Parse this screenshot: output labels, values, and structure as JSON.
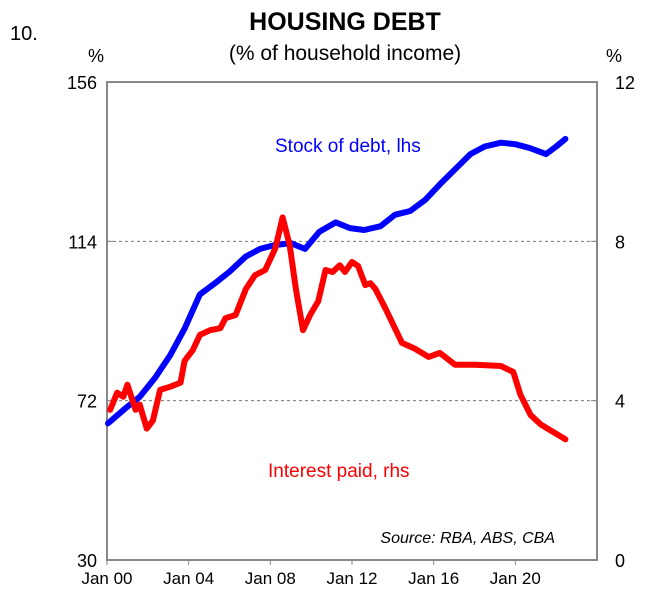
{
  "chart_data": {
    "type": "line",
    "chart_number": "10.",
    "title": "HOUSING DEBT",
    "subtitle": "(% of household income)",
    "left_unit": "%",
    "right_unit": "%",
    "left_axis": {
      "range": [
        30,
        156
      ],
      "ticks": [
        30,
        72,
        114,
        156
      ]
    },
    "right_axis": {
      "range": [
        0,
        12
      ],
      "ticks": [
        0,
        4,
        8,
        12
      ]
    },
    "x_axis": {
      "range": [
        2000,
        2024
      ],
      "ticks": [
        2000,
        2004,
        2008,
        2012,
        2016,
        2020
      ],
      "tick_labels": [
        "Jan 00",
        "Jan 04",
        "Jan 08",
        "Jan 12",
        "Jan 16",
        "Jan 20"
      ]
    },
    "gridlines": [
      72,
      114
    ],
    "source": "Source: RBA, ABS, CBA",
    "series": [
      {
        "name": "Stock of debt, lhs",
        "axis": "left",
        "color": "#0000ff",
        "x": [
          2000.05,
          2000.9,
          2001.6,
          2002.35,
          2003.1,
          2003.8,
          2004.55,
          2005.3,
          2006,
          2006.8,
          2007.5,
          2008.2,
          2009,
          2009.7,
          2010.4,
          2011.2,
          2011.9,
          2012.6,
          2013.4,
          2014.1,
          2014.85,
          2015.6,
          2016.3,
          2017.05,
          2017.8,
          2018.5,
          2019.3,
          2020,
          2020.7,
          2021.5,
          2022,
          2022.45
        ],
        "y": [
          66,
          70,
          73,
          78,
          84,
          91,
          100,
          103,
          106,
          110,
          112,
          113,
          113.5,
          112,
          116.5,
          119,
          117.5,
          117,
          118,
          121,
          122,
          125,
          129,
          133,
          137,
          139,
          140,
          139.6,
          138.6,
          137,
          139,
          141
        ]
      },
      {
        "name": "Interest paid, rhs",
        "axis": "right",
        "color": "#ff0000",
        "x": [
          2000.15,
          2000.5,
          2000.8,
          2001,
          2001.4,
          2001.6,
          2001.95,
          2002.25,
          2002.6,
          2003.1,
          2003.6,
          2003.8,
          2004.2,
          2004.55,
          2005.05,
          2005.55,
          2005.8,
          2006.3,
          2006.8,
          2007.25,
          2007.75,
          2008.25,
          2008.6,
          2008.95,
          2009.25,
          2009.6,
          2009.95,
          2010.35,
          2010.7,
          2011.05,
          2011.4,
          2011.65,
          2012,
          2012.3,
          2012.65,
          2012.9,
          2013.15,
          2013.65,
          2014.1,
          2014.45,
          2015.1,
          2015.75,
          2016.3,
          2017.05,
          2018.05,
          2019.3,
          2019.9,
          2020.25,
          2020.75,
          2021.25,
          2021.7,
          2022.45
        ],
        "y": [
          3.77,
          4.2,
          4.1,
          4.4,
          3.77,
          3.9,
          3.3,
          3.5,
          4.27,
          4.35,
          4.45,
          5.0,
          5.27,
          5.65,
          5.77,
          5.82,
          6.07,
          6.15,
          6.8,
          7.15,
          7.28,
          7.83,
          8.6,
          7.9,
          6.8,
          5.77,
          6.15,
          6.5,
          7.28,
          7.23,
          7.4,
          7.23,
          7.48,
          7.38,
          6.9,
          6.95,
          6.8,
          6.3,
          5.82,
          5.45,
          5.3,
          5.1,
          5.2,
          4.9,
          4.9,
          4.87,
          4.72,
          4.15,
          3.64,
          3.4,
          3.26,
          3.03
        ]
      }
    ]
  }
}
